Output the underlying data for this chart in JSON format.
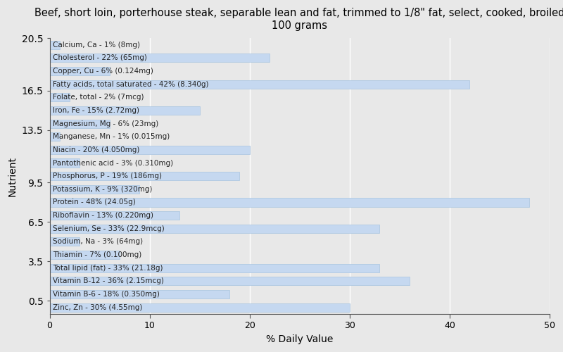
{
  "title": "Beef, short loin, porterhouse steak, separable lean and fat, trimmed to 1/8\" fat, select, cooked, broiled\n100 grams",
  "xlabel": "% Daily Value",
  "ylabel": "Nutrient",
  "background_color": "#e8e8e8",
  "bar_color": "#c5d8f0",
  "bar_edge_color": "#a8c4e0",
  "xlim": [
    0,
    50
  ],
  "nutrients": [
    {
      "label": "Calcium, Ca - 1% (8mg)",
      "value": 1
    },
    {
      "label": "Cholesterol - 22% (65mg)",
      "value": 22
    },
    {
      "label": "Copper, Cu - 6% (0.124mg)",
      "value": 6
    },
    {
      "label": "Fatty acids, total saturated - 42% (8.340g)",
      "value": 42
    },
    {
      "label": "Folate, total - 2% (7mcg)",
      "value": 2
    },
    {
      "label": "Iron, Fe - 15% (2.72mg)",
      "value": 15
    },
    {
      "label": "Magnesium, Mg - 6% (23mg)",
      "value": 6
    },
    {
      "label": "Manganese, Mn - 1% (0.015mg)",
      "value": 1
    },
    {
      "label": "Niacin - 20% (4.050mg)",
      "value": 20
    },
    {
      "label": "Pantothenic acid - 3% (0.310mg)",
      "value": 3
    },
    {
      "label": "Phosphorus, P - 19% (186mg)",
      "value": 19
    },
    {
      "label": "Potassium, K - 9% (320mg)",
      "value": 9
    },
    {
      "label": "Protein - 48% (24.05g)",
      "value": 48
    },
    {
      "label": "Riboflavin - 13% (0.220mg)",
      "value": 13
    },
    {
      "label": "Selenium, Se - 33% (22.9mcg)",
      "value": 33
    },
    {
      "label": "Sodium, Na - 3% (64mg)",
      "value": 3
    },
    {
      "label": "Thiamin - 7% (0.100mg)",
      "value": 7
    },
    {
      "label": "Total lipid (fat) - 33% (21.18g)",
      "value": 33
    },
    {
      "label": "Vitamin B-12 - 36% (2.15mcg)",
      "value": 36
    },
    {
      "label": "Vitamin B-6 - 18% (0.350mg)",
      "value": 18
    },
    {
      "label": "Zinc, Zn - 30% (4.55mg)",
      "value": 30
    }
  ],
  "title_fontsize": 10.5,
  "label_fontsize": 7.5,
  "tick_fontsize": 9,
  "axis_label_fontsize": 10
}
